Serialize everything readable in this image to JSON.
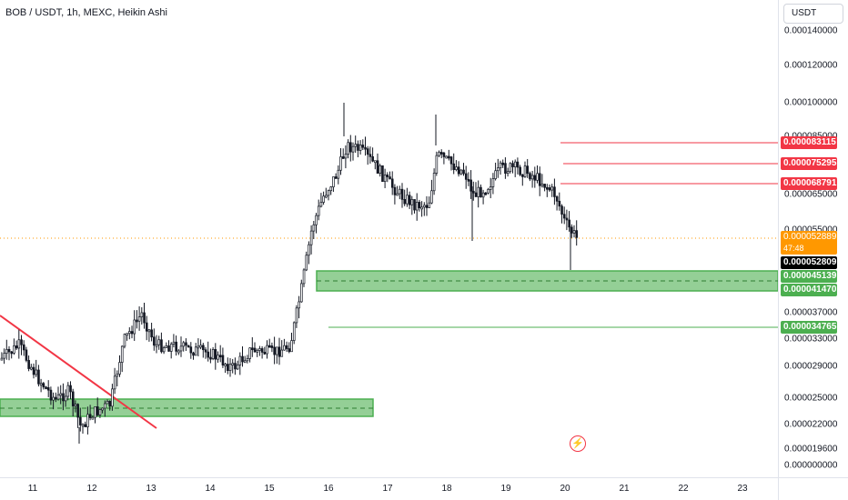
{
  "header": {
    "symbol_title": "BOB / USDT, 1h, MEXC, Heikin Ashi"
  },
  "price_axis": {
    "currency": "USDT",
    "ticks": [
      "0.000140000",
      "0.000120000",
      "0.000100000",
      "0.000085000",
      "0.000065000",
      "0.000055000",
      "0.000037000",
      "0.000033000",
      "0.000029000",
      "0.000025000",
      "0.000022000",
      "0.000019600",
      "0.000000000"
    ]
  },
  "time_axis": {
    "labels": [
      "11",
      "12",
      "13",
      "14",
      "15",
      "16",
      "17",
      "18",
      "19",
      "20",
      "21",
      "22",
      "23"
    ]
  },
  "price_tags": {
    "r1": "0.000083115",
    "r2": "0.000075295",
    "r3": "0.000068791",
    "last_price": "0.000052889",
    "countdown": "47:48",
    "crosshair": "0.000052809",
    "zone_top": "0.000045139",
    "zone_bottom": "0.000041470",
    "s1": "0.000034765"
  },
  "icons": {
    "flash": "flash-icon"
  },
  "colors": {
    "resistance": "#f23645",
    "support": "#4caf50",
    "zone_fill": "#81c784",
    "trendline": "#f23645",
    "last_price_line": "#ff9800",
    "candle_body": "#131722"
  },
  "chart_data": {
    "type": "candlestick",
    "title": "BOB / USDT, 1h, MEXC, Heikin Ashi",
    "x_axis": {
      "labels": [
        "11",
        "12",
        "13",
        "14",
        "15",
        "16",
        "17",
        "18",
        "19",
        "20",
        "21",
        "22",
        "23"
      ]
    },
    "price_axis_unit": "USDT",
    "series_summary": [
      {
        "day": "11",
        "approx_close": 2.55e-05
      },
      {
        "day": "12",
        "approx_close": 2.25e-05
      },
      {
        "day": "13",
        "approx_close": 3.1e-05
      },
      {
        "day": "14",
        "approx_close": 3e-05
      },
      {
        "day": "15",
        "approx_close": 2.9e-05
      },
      {
        "day": "16",
        "approx_close": 8.6e-05
      },
      {
        "day": "17",
        "approx_close": 6.8e-05
      },
      {
        "day": "18",
        "approx_close": 7.7e-05
      },
      {
        "day": "19",
        "approx_close": 7.5e-05
      },
      {
        "day": "20",
        "approx_close": 5.28e-05
      }
    ],
    "horizontal_levels": [
      {
        "price": 8.3115e-05,
        "color": "red"
      },
      {
        "price": 7.5295e-05,
        "color": "red"
      },
      {
        "price": 6.8791e-05,
        "color": "red"
      },
      {
        "price": 3.4765e-05,
        "color": "green"
      }
    ],
    "zones": [
      {
        "top": 4.5139e-05,
        "bottom": 4.147e-05,
        "color": "green"
      },
      {
        "top": 2.45e-05,
        "bottom": 2.32e-05,
        "color": "green"
      }
    ],
    "last_price": 5.2889e-05
  }
}
